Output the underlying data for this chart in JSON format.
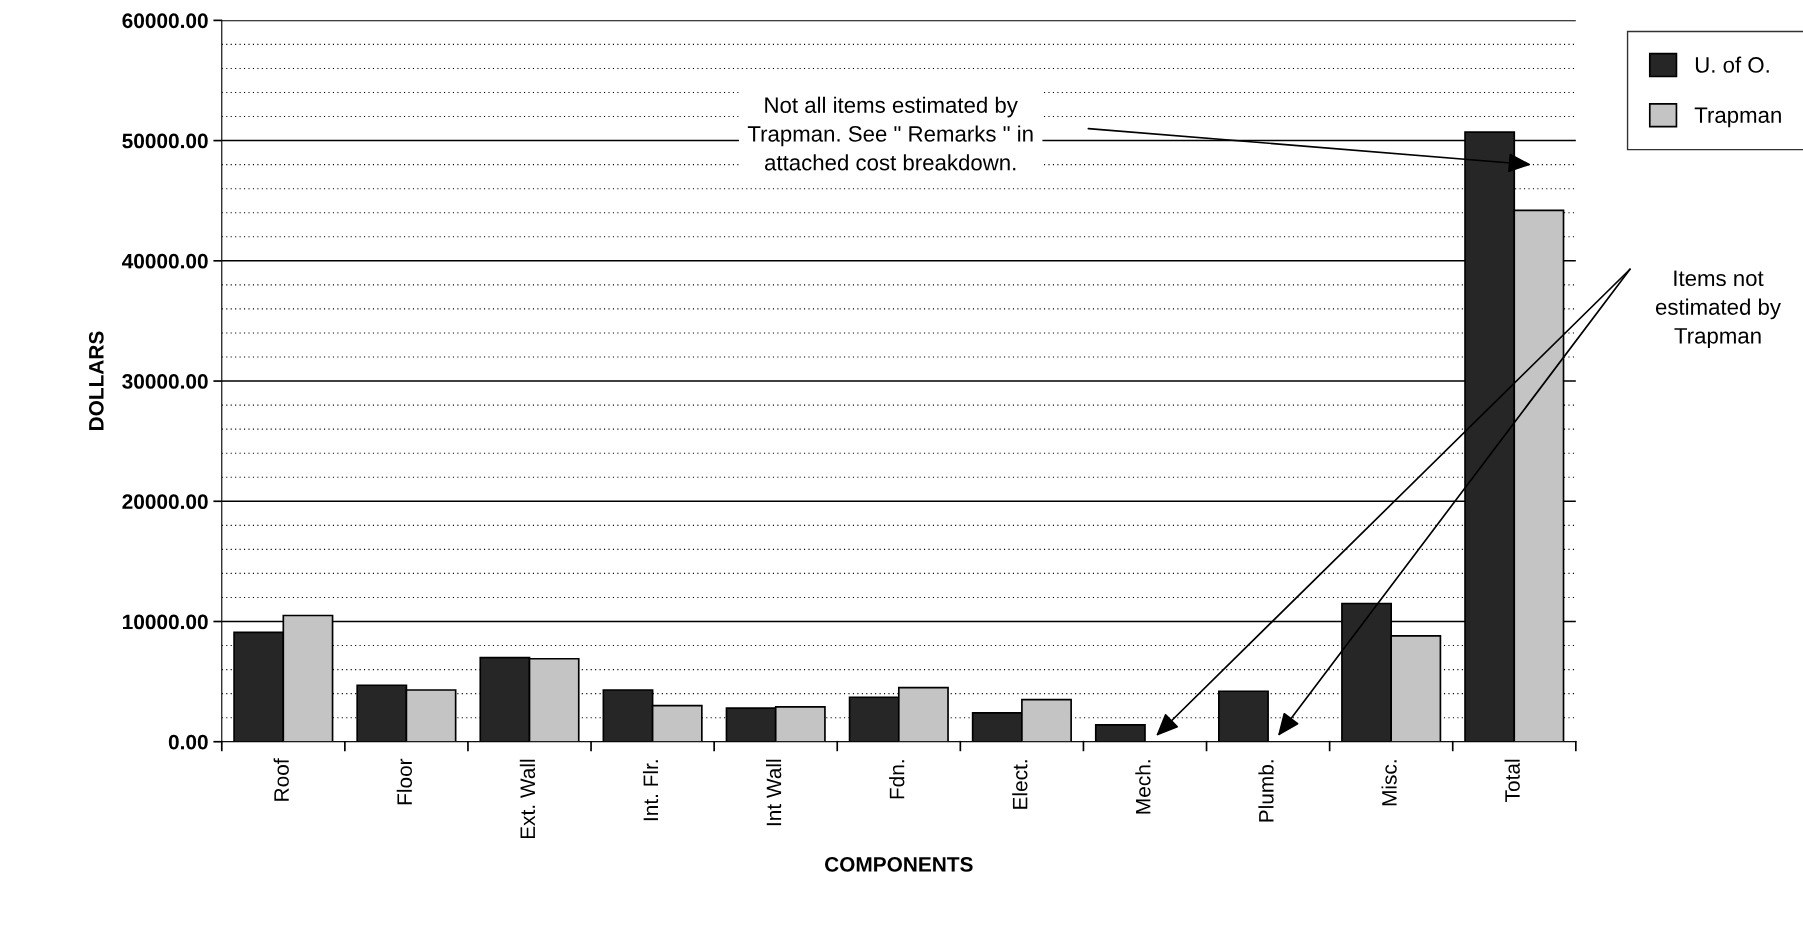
{
  "chart_data": {
    "type": "bar",
    "xlabel": "COMPONENTS",
    "ylabel": "DOLLARS",
    "categories": [
      "Roof",
      "Floor",
      "Ext. Wall",
      "Int. Flr.",
      "Int Wall",
      "Fdn.",
      "Elect.",
      "Mech.",
      "Plumb.",
      "Misc.",
      "Total"
    ],
    "series": [
      {
        "name": "U. of O.",
        "color": "#262626",
        "values": [
          9100,
          4700,
          7000,
          4300,
          2800,
          3700,
          2400,
          1400,
          4200,
          11500,
          50700
        ]
      },
      {
        "name": "Trapman",
        "color": "#c4c4c4",
        "values": [
          10500,
          4300,
          6900,
          3000,
          2900,
          4500,
          3500,
          null,
          null,
          8800,
          44200
        ]
      }
    ],
    "ylim": [
      0,
      60000
    ],
    "yticks": [
      {
        "value": 0,
        "label": "0.00"
      },
      {
        "value": 2000,
        "label": null
      },
      {
        "value": 4000,
        "label": null
      },
      {
        "value": 6000,
        "label": null
      },
      {
        "value": 8000,
        "label": null
      },
      {
        "value": 10000,
        "label": "10000.00"
      },
      {
        "value": 12000,
        "label": null
      },
      {
        "value": 14000,
        "label": null
      },
      {
        "value": 16000,
        "label": null
      },
      {
        "value": 18000,
        "label": null
      },
      {
        "value": 20000,
        "label": "20000.00"
      },
      {
        "value": 22000,
        "label": null
      },
      {
        "value": 24000,
        "label": null
      },
      {
        "value": 26000,
        "label": null
      },
      {
        "value": 28000,
        "label": null
      },
      {
        "value": 30000,
        "label": "30000.00"
      },
      {
        "value": 32000,
        "label": null
      },
      {
        "value": 34000,
        "label": null
      },
      {
        "value": 36000,
        "label": null
      },
      {
        "value": 38000,
        "label": null
      },
      {
        "value": 40000,
        "label": "40000.00"
      },
      {
        "value": 42000,
        "label": null
      },
      {
        "value": 44000,
        "label": null
      },
      {
        "value": 46000,
        "label": null
      },
      {
        "value": 48000,
        "label": null
      },
      {
        "value": 50000,
        "label": "50000.00"
      },
      {
        "value": 52000,
        "label": null
      },
      {
        "value": 54000,
        "label": null
      },
      {
        "value": 56000,
        "label": null
      },
      {
        "value": 58000,
        "label": null
      },
      {
        "value": 60000,
        "label": "60000.00"
      }
    ],
    "grid": "y",
    "legend": "top right",
    "annotations": [
      "Not all items estimated by\nTrapman. See \" Remarks \" in\nattached cost breakdown.",
      "Items not\nestimated by\nTrapman"
    ]
  }
}
